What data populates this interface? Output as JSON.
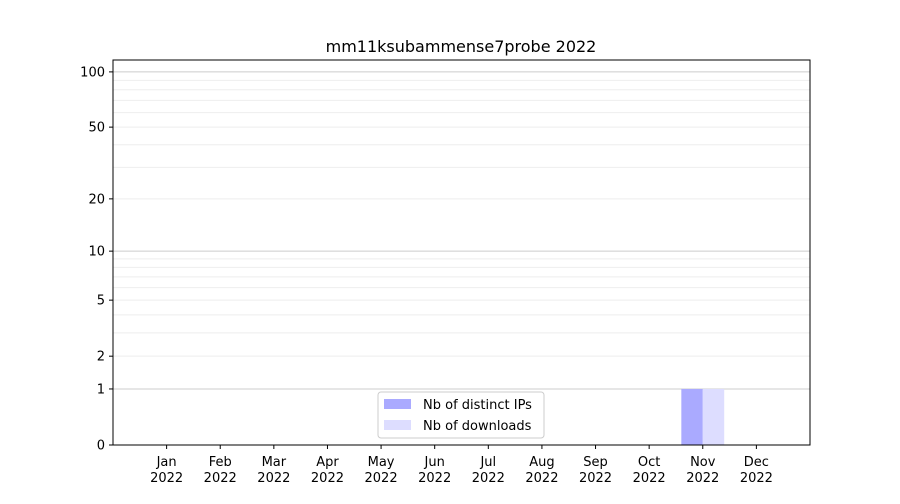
{
  "chart_data": {
    "type": "bar",
    "title": "mm11ksubammense7probe 2022",
    "xlabel": "",
    "ylabel": "",
    "categories": [
      "Jan\n2022",
      "Feb\n2022",
      "Mar\n2022",
      "Apr\n2022",
      "May\n2022",
      "Jun\n2022",
      "Jul\n2022",
      "Aug\n2022",
      "Sep\n2022",
      "Oct\n2022",
      "Nov\n2022",
      "Dec\n2022"
    ],
    "series": [
      {
        "name": "Nb of distinct IPs",
        "color": "#aaaaff",
        "values": [
          0,
          0,
          0,
          0,
          0,
          0,
          0,
          0,
          0,
          0,
          1,
          0
        ]
      },
      {
        "name": "Nb of downloads",
        "color": "#ddddff",
        "values": [
          0,
          0,
          0,
          0,
          0,
          0,
          0,
          0,
          0,
          0,
          1,
          0
        ]
      }
    ],
    "y_scale": "log10(y+1)",
    "yticks": [
      0,
      1,
      2,
      5,
      10,
      20,
      50,
      100
    ],
    "ylim": [
      0,
      116
    ],
    "grid": true,
    "legend_placement": "lower center"
  }
}
